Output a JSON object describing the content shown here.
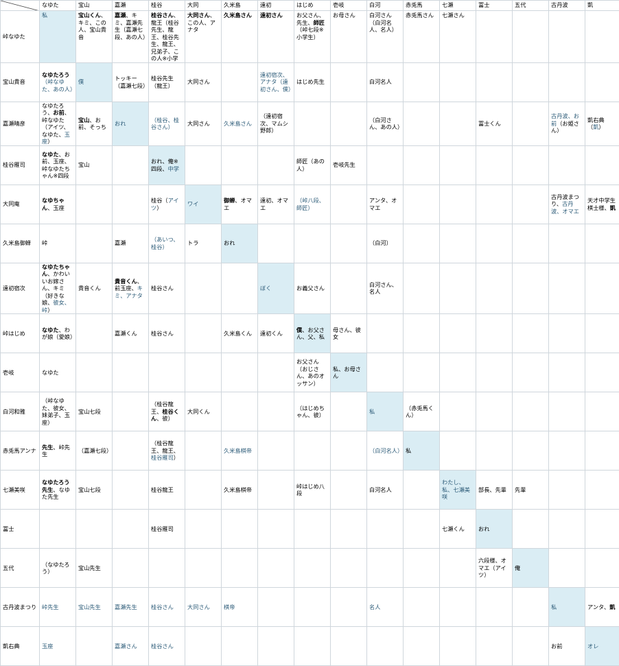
{
  "columns": [
    "なゆた",
    "宝山",
    "嘉瀬",
    "桂谷",
    "大同",
    "久米島",
    "遠初",
    "はじめ",
    "壱岐",
    "白河",
    "赤兎馬",
    "七瀬",
    "冨士",
    "五代",
    "古丹波",
    "凱"
  ],
  "rows": [
    {
      "label": "峠なゆた",
      "cells": [
        [
          {
            "t": "私",
            "s": "bl"
          }
        ],
        [
          {
            "t": "宝山くん",
            "s": "b"
          },
          {
            "t": "、キミ、この人、宝山貴音"
          }
        ],
        [
          {
            "t": "嘉瀬",
            "s": "b"
          },
          {
            "t": "、キミ、嘉瀬先生（嘉瀬七段、あの人）"
          }
        ],
        [
          {
            "t": "桂谷さん",
            "s": "b"
          },
          {
            "t": "、龍王（桂谷先生、龍王、桂谷先生、龍王、兄弟子、この人※小学"
          }
        ],
        [
          {
            "t": "大同さん",
            "s": "b"
          },
          {
            "t": "、この人、アナタ"
          }
        ],
        [
          {
            "t": "久米島さん",
            "s": "b"
          }
        ],
        [
          {
            "t": "遠初さん",
            "s": "b"
          }
        ],
        [
          {
            "t": "お父さん、先生、"
          },
          {
            "t": "師匠",
            "s": "b"
          },
          {
            "t": "（峠七段※小学生）"
          }
        ],
        [
          {
            "t": "お母さん"
          }
        ],
        [
          {
            "t": "白河さん（白河名人、名人）"
          }
        ],
        [
          {
            "t": "赤兎馬さん"
          }
        ],
        [
          {
            "t": "七瀬さん"
          }
        ],
        [],
        [],
        [],
        []
      ]
    },
    {
      "label": "宝山貴音",
      "cells": [
        [
          {
            "t": "なゆたろう",
            "s": "b"
          },
          {
            "t": "（峠なゆた、あの人）",
            "s": "bl"
          }
        ],
        [
          {
            "t": "僕",
            "s": "bl"
          }
        ],
        [
          {
            "t": "トッキー（嘉瀬七段）"
          }
        ],
        [
          {
            "t": "桂谷先生（龍王）"
          }
        ],
        [
          {
            "t": "大同さん"
          }
        ],
        [],
        [
          {
            "t": "遠初宿次、アナタ（遠初さん、僕）",
            "s": "bl"
          }
        ],
        [
          {
            "t": "はじめ先生"
          }
        ],
        [],
        [
          {
            "t": "白河名人"
          }
        ],
        [],
        [],
        [],
        [],
        [],
        []
      ]
    },
    {
      "label": "嘉瀬晴彦",
      "cells": [
        [
          {
            "t": "なゆたろう、"
          },
          {
            "t": "お前",
            "s": "b"
          },
          {
            "t": "、峠なゆた（アイツ、なゆた、"
          },
          {
            "t": "玉座",
            "s": "bl"
          },
          {
            "t": "）"
          }
        ],
        [
          {
            "t": "宝山",
            "s": "b"
          },
          {
            "t": "、お前、そっち"
          }
        ],
        [
          {
            "t": "おれ",
            "s": "bl"
          }
        ],
        [
          {
            "t": "（桂谷、桂谷さん）",
            "s": "bl"
          }
        ],
        [
          {
            "t": "大同さん"
          }
        ],
        [
          {
            "t": "久米島さん",
            "s": "bl"
          }
        ],
        [
          {
            "t": "（遠初宿次、マムシ野郎）"
          }
        ],
        [],
        [],
        [
          {
            "t": "（白河さん、あの人）"
          }
        ],
        [],
        [],
        [
          {
            "t": "冨士くん"
          }
        ],
        [],
        [
          {
            "t": "古丹波、お前",
            "s": "bl"
          },
          {
            "t": "（お姫さん）"
          }
        ],
        [
          {
            "t": "凱右典（"
          },
          {
            "t": "凱",
            "s": "bl"
          },
          {
            "t": "）"
          }
        ]
      ]
    },
    {
      "label": "桂谷雁司",
      "cells": [
        [
          {
            "t": "なゆた",
            "s": "b"
          },
          {
            "t": "、お前、玉座、峠なゆたちゃん※四段"
          }
        ],
        [
          {
            "t": "宝山"
          }
        ],
        [],
        [
          {
            "t": "おれ、俺※四段、"
          },
          {
            "t": "中学",
            "s": "bl"
          }
        ],
        [],
        [],
        [],
        [
          {
            "t": "師匠（あの人）"
          }
        ],
        [
          {
            "t": "壱岐先生"
          }
        ],
        [],
        [],
        [],
        [],
        [],
        [],
        []
      ]
    },
    {
      "label": "大同庵",
      "cells": [
        [
          {
            "t": "なゆちゃん",
            "s": "b"
          },
          {
            "t": "、玉座"
          }
        ],
        [],
        [],
        [
          {
            "t": "桂谷（"
          },
          {
            "t": "アイツ",
            "s": "bl"
          },
          {
            "t": "）"
          }
        ],
        [
          {
            "t": "ワイ",
            "s": "bl"
          }
        ],
        [
          {
            "t": "御蝉",
            "s": "b"
          },
          {
            "t": "、オマエ"
          }
        ],
        [
          {
            "t": "遠初、オマエ"
          }
        ],
        [
          {
            "t": "（峠八段、師匠）",
            "s": "bl"
          }
        ],
        [],
        [
          {
            "t": "アンタ、オマエ"
          }
        ],
        [],
        [],
        [],
        [],
        [
          {
            "t": "古丹波まつり、"
          },
          {
            "t": "古丹波、オマエ",
            "s": "bl"
          }
        ],
        [
          {
            "t": "天才中学生棋士様、"
          },
          {
            "t": "凱",
            "s": "b"
          }
        ]
      ]
    },
    {
      "label": "久米島御蝉",
      "cells": [
        [
          {
            "t": "峠"
          }
        ],
        [],
        [
          {
            "t": "嘉瀬"
          }
        ],
        [
          {
            "t": "（あいつ、桂谷）",
            "s": "bl"
          }
        ],
        [
          {
            "t": "トラ"
          }
        ],
        [
          {
            "t": "おれ"
          }
        ],
        [],
        [],
        [],
        [
          {
            "t": "（白河）"
          }
        ],
        [],
        [],
        [],
        [],
        [],
        []
      ]
    },
    {
      "label": "遠初宿次",
      "cells": [
        [
          {
            "t": "なゆたちゃん",
            "s": "b"
          },
          {
            "t": "、かわいいお嫁さん、キミ（好きな娘、"
          },
          {
            "t": "彼女、峠",
            "s": "bl"
          },
          {
            "t": "）"
          }
        ],
        [
          {
            "t": "貴音くん"
          }
        ],
        [
          {
            "t": "貴音くん",
            "s": "b"
          },
          {
            "t": "、前玉座、"
          },
          {
            "t": "キミ、アナタ",
            "s": "bl"
          }
        ],
        [
          {
            "t": "桂谷さん"
          }
        ],
        [],
        [],
        [
          {
            "t": "ぼく",
            "s": "bl"
          }
        ],
        [
          {
            "t": "お義父さん"
          }
        ],
        [],
        [
          {
            "t": "白河さん、名人"
          }
        ],
        [],
        [],
        [],
        [],
        [],
        []
      ]
    },
    {
      "label": "峠はじめ",
      "cells": [
        [
          {
            "t": "なゆた",
            "s": "b"
          },
          {
            "t": "、わが娘（愛娘）"
          }
        ],
        [],
        [
          {
            "t": "嘉瀬くん"
          }
        ],
        [
          {
            "t": "桂谷さん"
          }
        ],
        [],
        [
          {
            "t": "久米島くん"
          }
        ],
        [
          {
            "t": "遠初くん"
          }
        ],
        [
          {
            "t": "僕",
            "s": "b"
          },
          {
            "t": "、お父さん、父、私"
          }
        ],
        [
          {
            "t": "母さん、彼女"
          }
        ],
        [],
        [],
        [],
        [],
        [],
        [],
        []
      ]
    },
    {
      "label": "壱岐",
      "cells": [
        [
          {
            "t": "なゆた"
          }
        ],
        [],
        [],
        [],
        [],
        [],
        [],
        [
          {
            "t": "お父さん（おじさん、あのオッサン）"
          }
        ],
        [
          {
            "t": "私、お母さん"
          }
        ],
        [],
        [],
        [],
        [],
        [],
        [],
        []
      ]
    },
    {
      "label": "白河和雅",
      "cells": [
        [
          {
            "t": "（峠なゆた、彼女、妹弟子、玉座）"
          }
        ],
        [
          {
            "t": "宝山七段"
          }
        ],
        [],
        [
          {
            "t": "（桂谷龍王、"
          },
          {
            "t": "桂谷くん",
            "s": "b"
          },
          {
            "t": "、彼）"
          }
        ],
        [
          {
            "t": "大同くん"
          }
        ],
        [],
        [],
        [
          {
            "t": "（はじめちゃん、彼）"
          }
        ],
        [],
        [
          {
            "t": "私",
            "s": "bl"
          }
        ],
        [
          {
            "t": "（赤兎馬くん）"
          }
        ],
        [],
        [],
        [],
        [],
        []
      ]
    },
    {
      "label": "赤兎馬アンナ",
      "cells": [
        [
          {
            "t": "先生",
            "s": "b"
          },
          {
            "t": "、峠先生"
          }
        ],
        [
          {
            "t": "（嘉瀬七段）"
          }
        ],
        [],
        [
          {
            "t": "（桂谷龍王、龍王、"
          },
          {
            "t": "桂谷雁司",
            "s": "bl"
          },
          {
            "t": "）"
          }
        ],
        [],
        [
          {
            "t": "久米島棋帝",
            "s": "bl"
          }
        ],
        [],
        [],
        [],
        [
          {
            "t": "（白河名人）",
            "s": "bl"
          }
        ],
        [
          {
            "t": "私"
          }
        ],
        [],
        [],
        [],
        [],
        []
      ]
    },
    {
      "label": "七瀬美咲",
      "cells": [
        [
          {
            "t": "なゆたろう先生",
            "s": "b"
          },
          {
            "t": "、なゆた先生"
          }
        ],
        [
          {
            "t": "宝山七段"
          }
        ],
        [],
        [
          {
            "t": "桂谷龍王"
          }
        ],
        [],
        [
          {
            "t": "久米島棋帝"
          }
        ],
        [],
        [
          {
            "t": "峠はじめ八段"
          }
        ],
        [],
        [
          {
            "t": "白河名人"
          }
        ],
        [],
        [
          {
            "t": "わたし、私、七瀬美咲",
            "s": "bl"
          }
        ],
        [
          {
            "t": "部長、先輩"
          }
        ],
        [
          {
            "t": "先輩"
          }
        ],
        [],
        []
      ]
    },
    {
      "label": "冨士",
      "cells": [
        [],
        [],
        [],
        [
          {
            "t": "桂谷雁司"
          }
        ],
        [],
        [],
        [],
        [],
        [],
        [],
        [],
        [
          {
            "t": "七瀬くん"
          }
        ],
        [
          {
            "t": "おれ"
          }
        ],
        [],
        [],
        []
      ]
    },
    {
      "label": "五代",
      "cells": [
        [
          {
            "t": "（なゆたろう）"
          }
        ],
        [
          {
            "t": "宝山先生"
          }
        ],
        [],
        [],
        [],
        [],
        [],
        [],
        [],
        [],
        [],
        [],
        [
          {
            "t": "六段様、オマエ（アイツ）"
          }
        ],
        [
          {
            "t": "俺"
          }
        ],
        [],
        []
      ]
    },
    {
      "label": "古丹波まつり",
      "cells": [
        [
          {
            "t": "峠先生",
            "s": "bl"
          }
        ],
        [
          {
            "t": "宝山先生",
            "s": "bl"
          }
        ],
        [
          {
            "t": "嘉瀬先生",
            "s": "bl"
          }
        ],
        [
          {
            "t": "桂谷さん",
            "s": "bl"
          }
        ],
        [
          {
            "t": "大同さん",
            "s": "bl"
          }
        ],
        [
          {
            "t": "棋帝",
            "s": "bl"
          }
        ],
        [],
        [],
        [],
        [
          {
            "t": "名人",
            "s": "bl"
          }
        ],
        [],
        [],
        [],
        [],
        [
          {
            "t": "私",
            "s": "bl"
          }
        ],
        [
          {
            "t": "アンタ、"
          },
          {
            "t": "凱",
            "s": "b"
          }
        ]
      ]
    },
    {
      "label": "凱右典",
      "cells": [
        [
          {
            "t": "玉座",
            "s": "bl"
          }
        ],
        [],
        [
          {
            "t": "嘉瀬さん",
            "s": "bl"
          }
        ],
        [
          {
            "t": "桂谷さん",
            "s": "bl"
          }
        ],
        [],
        [],
        [],
        [],
        [],
        [],
        [],
        [],
        [],
        [],
        [
          {
            "t": "お前"
          }
        ],
        [
          {
            "t": "オレ",
            "s": "bl"
          }
        ]
      ]
    }
  ],
  "diagonal": [
    0,
    1,
    2,
    3,
    4,
    5,
    6,
    7,
    8,
    9,
    10,
    11,
    12,
    13,
    14,
    15
  ]
}
